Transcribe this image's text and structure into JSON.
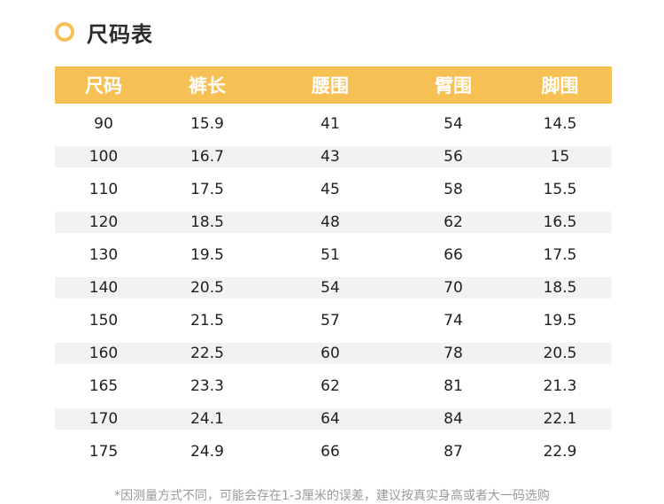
{
  "section": {
    "title": "尺码表",
    "accent_color": "#f7c055",
    "icon": "ring-icon"
  },
  "table": {
    "header_color": "#f7c055",
    "stripe_color": "#f2f2f2",
    "columns": [
      "尺码",
      "裤长",
      "腰围",
      "臂围",
      "脚围"
    ],
    "rows": [
      [
        "90",
        "15.9",
        "41",
        "54",
        "14.5"
      ],
      [
        "100",
        "16.7",
        "43",
        "56",
        "15"
      ],
      [
        "110",
        "17.5",
        "45",
        "58",
        "15.5"
      ],
      [
        "120",
        "18.5",
        "48",
        "62",
        "16.5"
      ],
      [
        "130",
        "19.5",
        "51",
        "66",
        "17.5"
      ],
      [
        "140",
        "20.5",
        "54",
        "70",
        "18.5"
      ],
      [
        "150",
        "21.5",
        "57",
        "74",
        "19.5"
      ],
      [
        "160",
        "22.5",
        "60",
        "78",
        "20.5"
      ],
      [
        "165",
        "23.3",
        "62",
        "81",
        "21.3"
      ],
      [
        "170",
        "24.1",
        "64",
        "84",
        "22.1"
      ],
      [
        "175",
        "24.9",
        "66",
        "87",
        "22.9"
      ]
    ]
  },
  "footnote": "*因测量方式不同，可能会存在1-3厘米的误差，建议按真实身高或者大一码选购"
}
